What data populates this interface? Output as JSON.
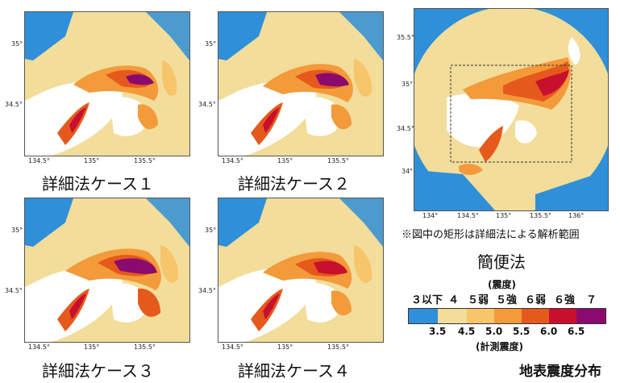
{
  "panels": [
    {
      "caption": "詳細法ケース１",
      "ticks_x": [
        "134.5°",
        "135°",
        "135.5°"
      ],
      "ticks_y": [
        "35°",
        "34.5°"
      ]
    },
    {
      "caption": "詳細法ケース２",
      "ticks_x": [
        "134.5°",
        "135°",
        "135.5°"
      ],
      "ticks_y": [
        "35°",
        "34.5°"
      ]
    },
    {
      "caption": "詳細法ケース３",
      "ticks_x": [
        "134.5°",
        "135°",
        "135.5°"
      ],
      "ticks_y": [
        "35°",
        "34.5°"
      ]
    },
    {
      "caption": "詳細法ケース４",
      "ticks_x": [
        "134.5°",
        "135°",
        "135.5°"
      ],
      "ticks_y": [
        "35°",
        "34.5°"
      ]
    }
  ],
  "simple_map": {
    "caption": "簡便法",
    "note": "※図中の矩形は詳細法による解析範囲",
    "ticks_x": [
      "134°",
      "134.5°",
      "135°",
      "135.5°",
      "136°"
    ],
    "ticks_y": [
      "35.5°",
      "35°",
      "34.5°",
      "34°"
    ]
  },
  "legend": {
    "title": "(震度)",
    "intensity_labels": [
      "３以下",
      "４",
      "５弱",
      "５強",
      "６弱",
      "６強",
      "７"
    ],
    "value_labels": [
      "3.5",
      "4.5",
      "5.0",
      "5.5",
      "6.0",
      "6.5"
    ],
    "subtitle": "(計測震度)",
    "colors": [
      "#2f8fd8",
      "#f2dd9a",
      "#f7c56a",
      "#f39a3a",
      "#e55a1c",
      "#c8102e",
      "#8b0a6e"
    ]
  },
  "figure_title": "地表震度分布",
  "colors": {
    "sea": "#ffffff",
    "sea_blue": "#2f8fd8",
    "land": "#f2dd9a",
    "orange": "#f39a3a",
    "red": "#e55a1c",
    "darkred": "#c8102e",
    "purple": "#8b0a6e"
  }
}
